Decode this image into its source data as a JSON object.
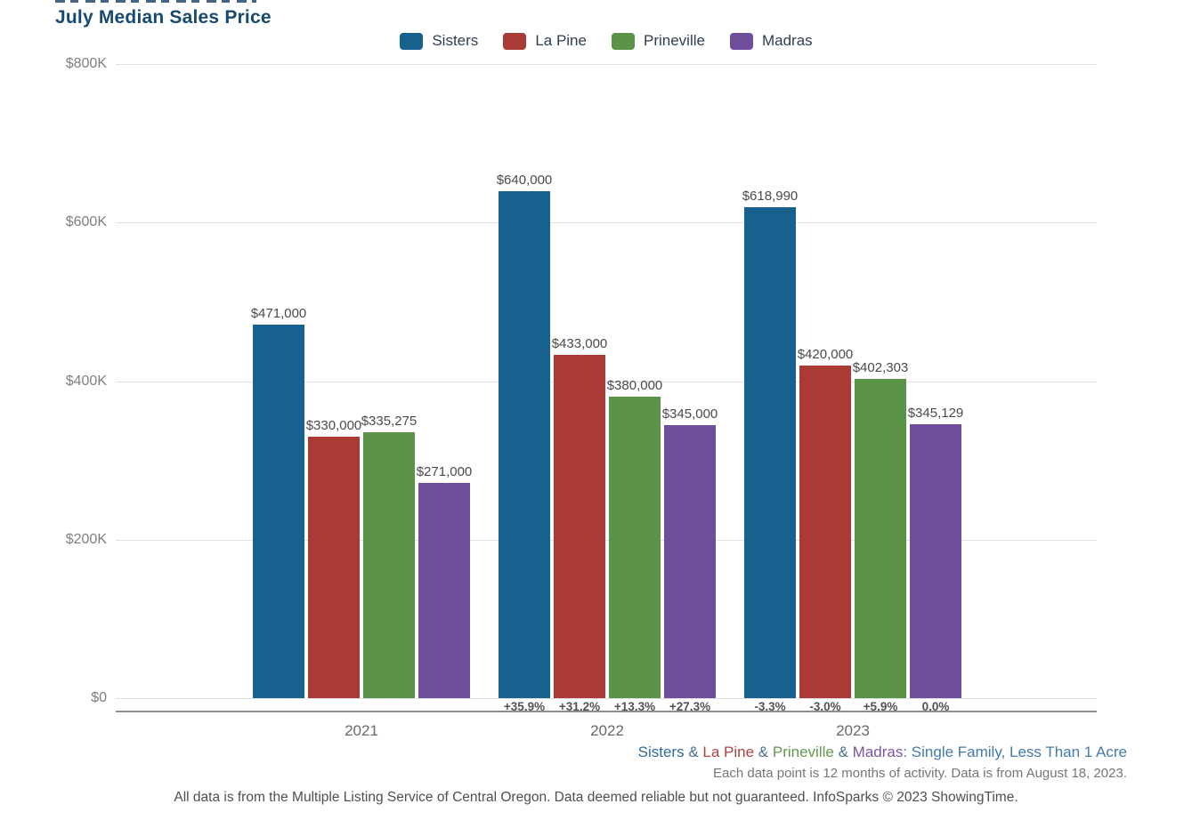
{
  "title": "July Median Sales Price",
  "legend": {
    "items": [
      {
        "label": "Sisters",
        "color": "#17618f"
      },
      {
        "label": "La Pine",
        "color": "#a93a35"
      },
      {
        "label": "Prineville",
        "color": "#5b9348"
      },
      {
        "label": "Madras",
        "color": "#6f4f9c"
      }
    ]
  },
  "chart_data": {
    "type": "bar",
    "title": "July Median Sales Price",
    "categories": [
      "2021",
      "2022",
      "2023"
    ],
    "series": [
      {
        "name": "Sisters",
        "color": "#17618f",
        "values": [
          471000,
          640000,
          618990
        ],
        "labels": [
          "$471,000",
          "$640,000",
          "$618,990"
        ],
        "pct_change": [
          null,
          "+35.9%",
          "-3.3%"
        ]
      },
      {
        "name": "La Pine",
        "color": "#a93a35",
        "values": [
          330000,
          433000,
          420000
        ],
        "labels": [
          "$330,000",
          "$433,000",
          "$420,000"
        ],
        "pct_change": [
          null,
          "+31.2%",
          "-3.0%"
        ]
      },
      {
        "name": "Prineville",
        "color": "#5b9348",
        "values": [
          335275,
          380000,
          402303
        ],
        "labels": [
          "$335,275",
          "$380,000",
          "$402,303"
        ],
        "pct_change": [
          null,
          "+13.3%",
          "+5.9%"
        ]
      },
      {
        "name": "Madras",
        "color": "#6f4f9c",
        "values": [
          271000,
          345000,
          345129
        ],
        "labels": [
          "$271,000",
          "$345,000",
          "$345,129"
        ],
        "pct_change": [
          null,
          "+27.3%",
          "0.0%"
        ]
      }
    ],
    "xlabel": "",
    "ylabel": "",
    "ylim": [
      0,
      800000
    ],
    "yticks": [
      {
        "label": "$800K",
        "value": 800000
      },
      {
        "label": "$600K",
        "value": 600000
      },
      {
        "label": "$400K",
        "value": 400000
      },
      {
        "label": "$200K",
        "value": 200000
      },
      {
        "label": "$0",
        "value": 0
      }
    ],
    "grid": true,
    "legend_position": "top"
  },
  "footer": {
    "line1_segments": [
      {
        "text": "Sisters",
        "color": "#2e6b9e"
      },
      {
        "text": " & ",
        "color": "#46718f"
      },
      {
        "text": "La Pine",
        "color": "#ab4340"
      },
      {
        "text": " & ",
        "color": "#46718f"
      },
      {
        "text": "Prineville",
        "color": "#639a51"
      },
      {
        "text": " & ",
        "color": "#46718f"
      },
      {
        "text": "Madras",
        "color": "#7a54a6"
      },
      {
        "text": ": Single Family, Less Than 1 Acre",
        "color": "#4479ab"
      }
    ],
    "line2": "Each data point is 12 months of activity. Data is from August 18, 2023.",
    "line3": "All data is from the Multiple Listing Service of Central Oregon. Data deemed reliable but not guaranteed. InfoSparks © 2023 ShowingTime."
  }
}
